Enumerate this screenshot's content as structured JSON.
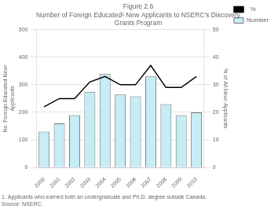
{
  "chart_data": {
    "type": "bar",
    "title": [
      "Figure 2.6",
      "Number of Foreign Educated¹ New Applicants to NSERC's Discovery",
      "Grants Program"
    ],
    "categories": [
      "2000",
      "2001",
      "2002",
      "2003",
      "2004",
      "2005",
      "2006",
      "2007",
      "2008",
      "2009",
      "2010"
    ],
    "series": [
      {
        "name": "Number",
        "color": "#c6ecf5",
        "values": [
          130,
          160,
          190,
          275,
          340,
          265,
          258,
          330,
          230,
          190,
          200
        ]
      },
      {
        "name": "  %",
        "type": "line",
        "color": "#000000",
        "axis": "y2",
        "values": [
          22,
          25,
          25,
          31,
          33,
          30,
          30,
          37,
          29,
          29,
          33
        ]
      }
    ],
    "ylabel": "No. Foreign Educated New¹\nApplicants",
    "y2label": "% of All New¹ Applicants",
    "ylim": [
      0,
      500
    ],
    "yticks": [
      0,
      100,
      200,
      300,
      400,
      500
    ],
    "y2lim": [
      0,
      50
    ],
    "y2ticks": [
      0,
      10,
      20,
      30,
      40,
      50
    ],
    "grid": true,
    "legend": "right",
    "annotations": [
      "1. Applicants who earned both an undergraduate and Ph.D. degree outside Canada.",
      "Source: NSERC."
    ]
  }
}
